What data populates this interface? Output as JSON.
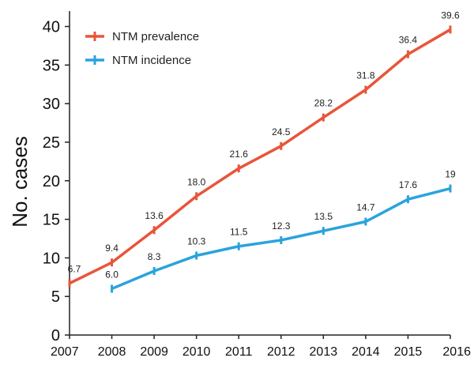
{
  "chart_data": {
    "type": "line",
    "title": "",
    "xlabel": "",
    "ylabel": "No. cases",
    "x": [
      2007,
      2008,
      2009,
      2010,
      2011,
      2012,
      2013,
      2014,
      2015,
      2016
    ],
    "ylim": [
      0,
      42
    ],
    "yticks": [
      0,
      5,
      10,
      15,
      20,
      25,
      30,
      35,
      40
    ],
    "grid": false,
    "legend_position": "top-left",
    "series": [
      {
        "name": "NTM prevalence",
        "color": "#e8553a",
        "values": [
          6.7,
          9.4,
          13.6,
          18.0,
          21.6,
          24.5,
          28.2,
          31.8,
          36.4,
          39.6
        ],
        "labels": [
          "6.7",
          "9.4",
          "13.6",
          "18.0",
          "21.6",
          "24.5",
          "28.2",
          "31.8",
          "36.4",
          "39.6"
        ]
      },
      {
        "name": "NTM incidence",
        "color": "#2aa3dd",
        "values": [
          null,
          6.0,
          8.3,
          10.3,
          11.5,
          12.3,
          13.5,
          14.7,
          17.6,
          19
        ],
        "labels": [
          null,
          "6.0",
          "8.3",
          "10.3",
          "11.5",
          "12.3",
          "13.5",
          "14.7",
          "17.6",
          "19"
        ]
      }
    ]
  }
}
